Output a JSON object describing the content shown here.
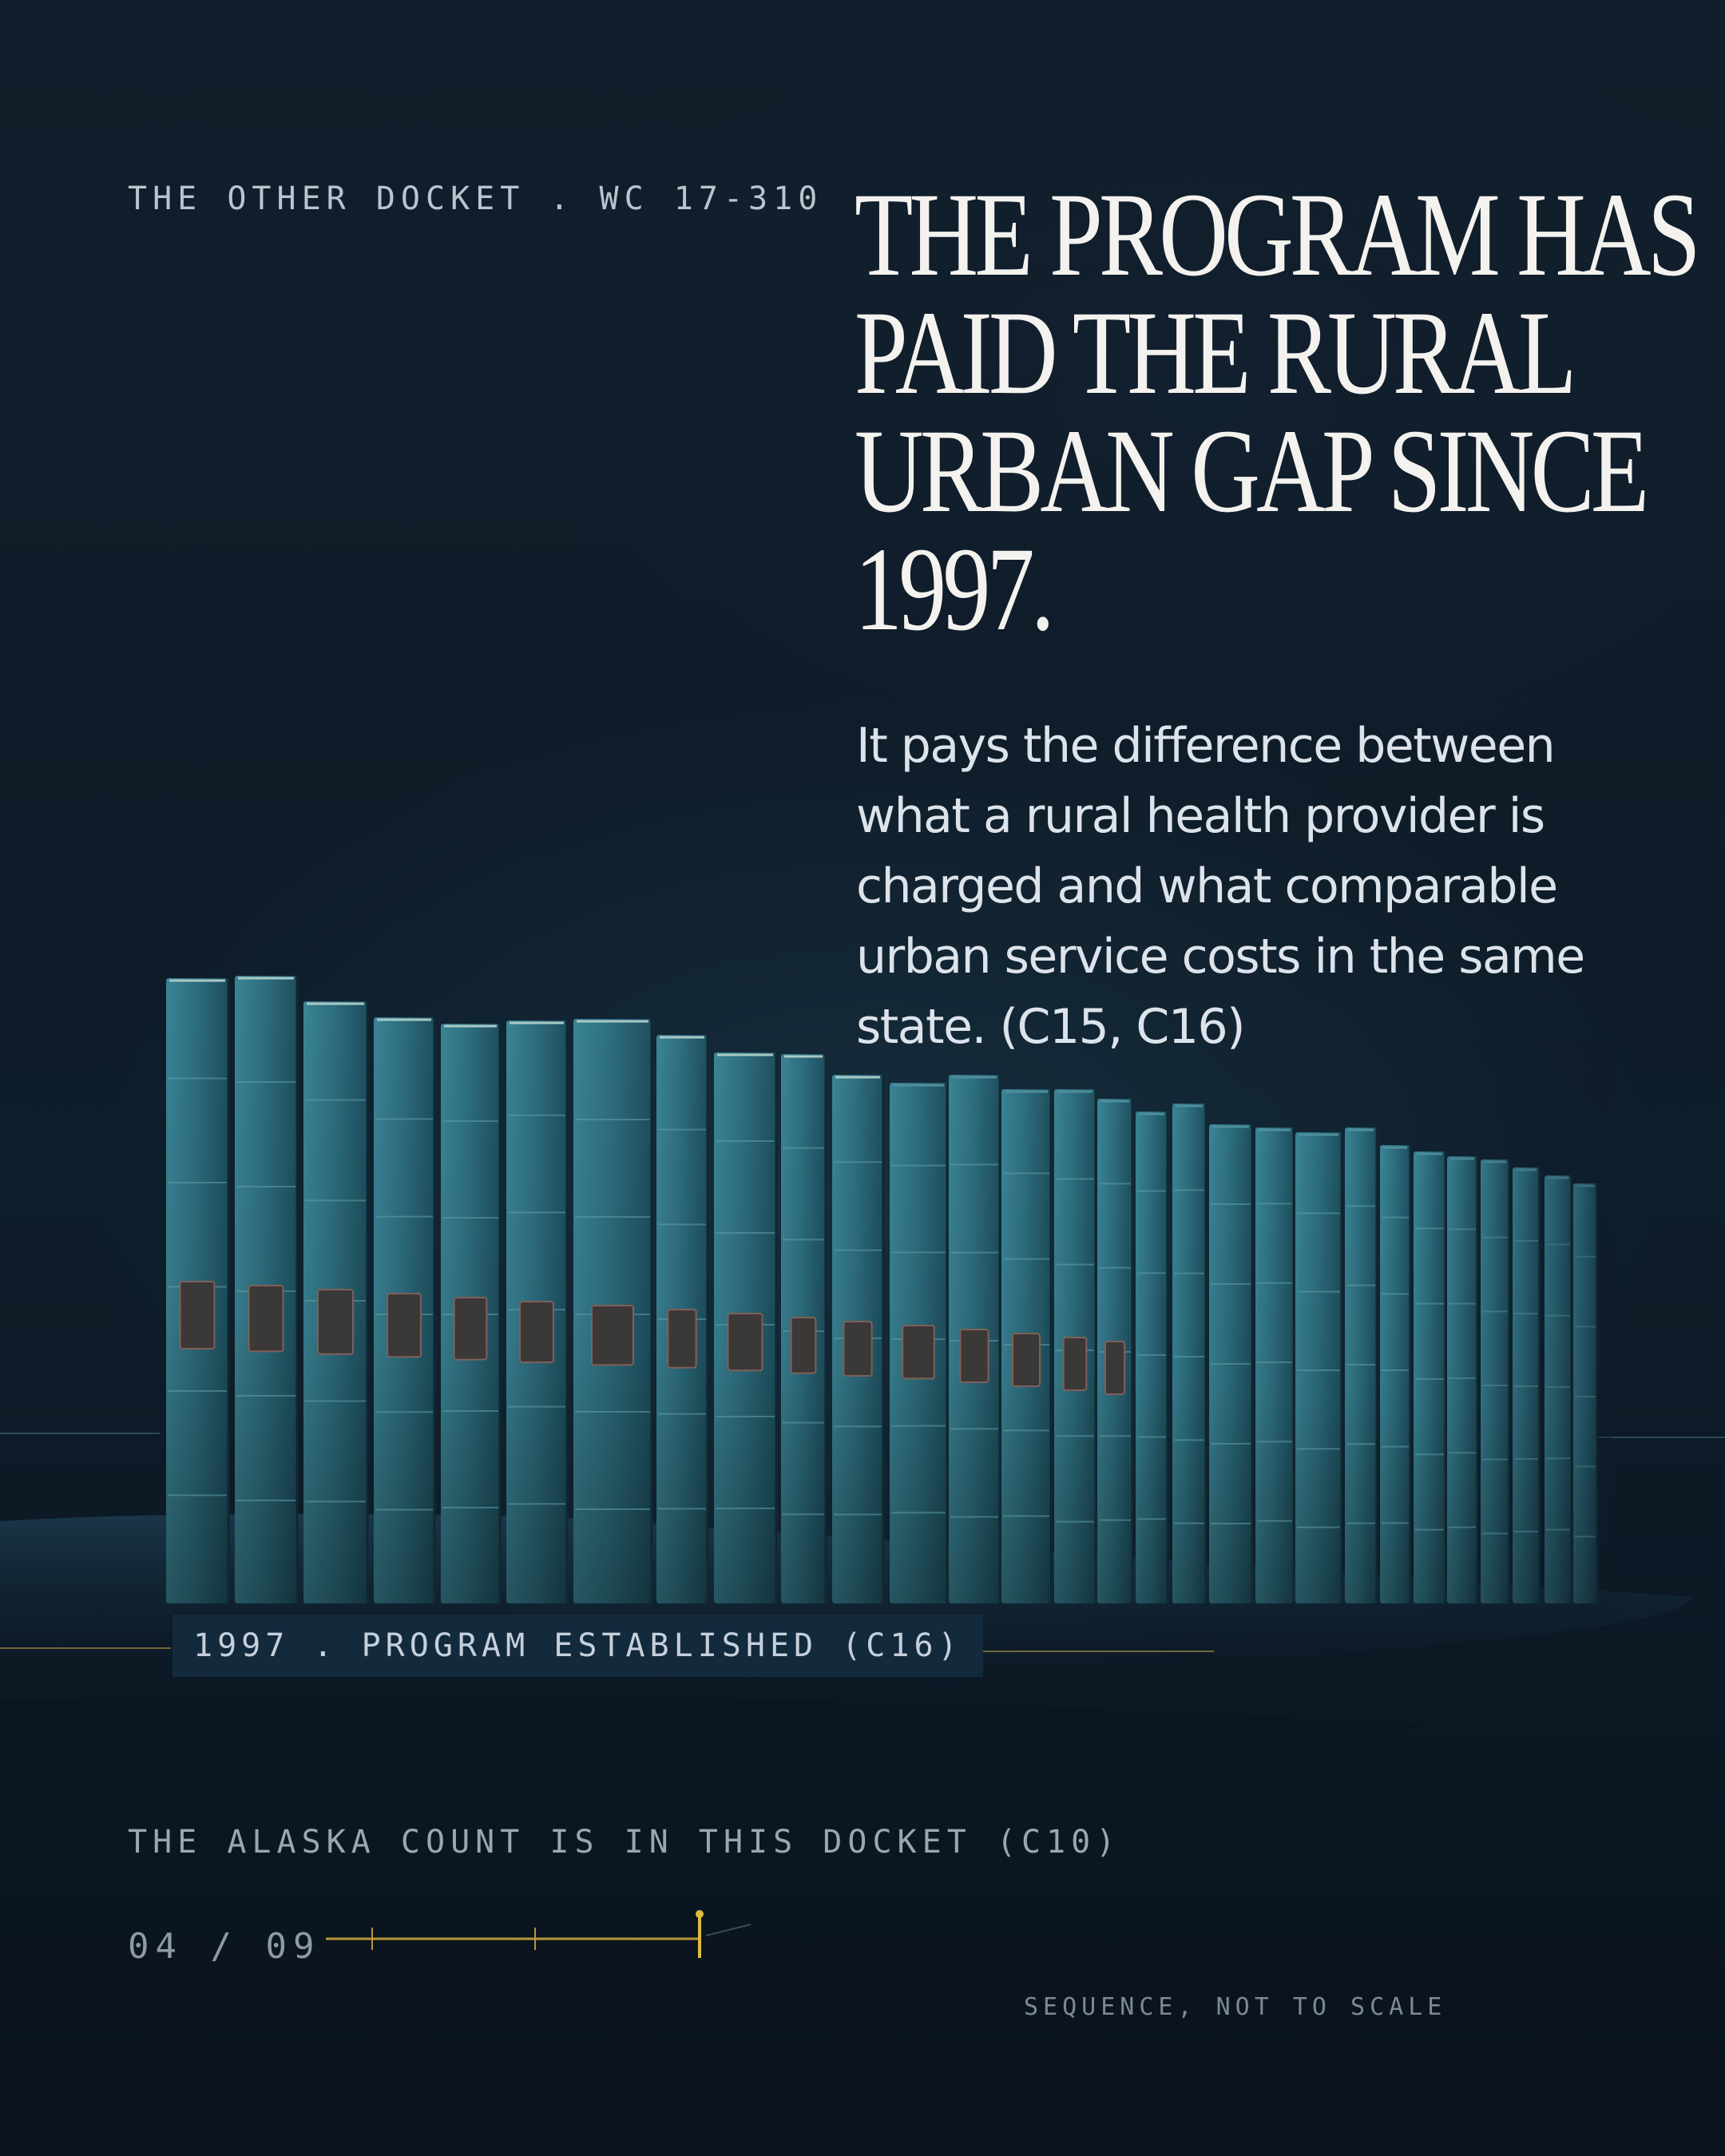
{
  "header": {
    "kicker": "THE OTHER DOCKET . WC 17-310"
  },
  "headline": {
    "lines": [
      "THE PROGRAM HAS",
      "PAID THE RURAL",
      "URBAN GAP SINCE",
      "1997."
    ]
  },
  "body": {
    "text": "It pays the difference between what a rural health provider is charged and what comparable urban service costs in the same state. (C15, C16)"
  },
  "illustration": {
    "baseline_label": "1997 . PROGRAM ESTABLISHED (C16)"
  },
  "footer": {
    "note": "THE ALASKA COUNT IS IN THIS DOCKET (C10)",
    "pager": {
      "label": "04 / 09",
      "current": 4,
      "total": 9
    },
    "scale_note": "SEQUENCE, NOT TO SCALE"
  },
  "colors": {
    "background": "#0e1b28",
    "binder": "#2a6878",
    "accent_gold": "#d9b338"
  }
}
